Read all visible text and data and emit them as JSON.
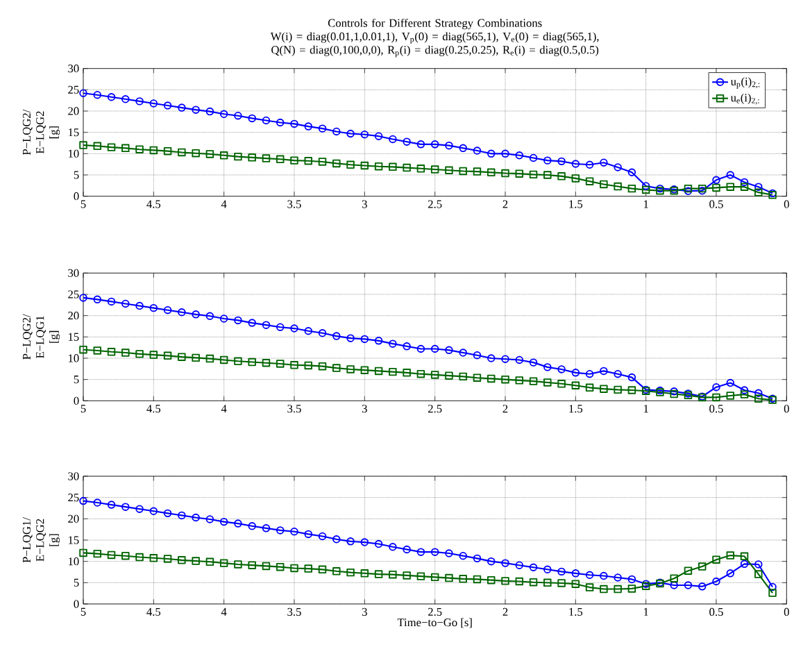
{
  "chart_data": [
    {
      "type": "line",
      "title": "Controls for Different Strategy Combinations",
      "subtitle": "W(i) = diag(0.01,1,0.01,1), V$_{p}$(0) = diag(565,1), V$_{e}$(0) = diag(565,1), Q(N) = diag(0,100,0,0), R$_{p}$(i) = diag(0.25,0.25), R$_{e}$(i) = diag(0.5,0.5)",
      "ylabel": "P−LQG2/ E−LQG2 [g]",
      "x": [
        5,
        4.9,
        4.8,
        4.7,
        4.6,
        4.5,
        4.4,
        4.3,
        4.2,
        4.1,
        4,
        3.9,
        3.8,
        3.7,
        3.6,
        3.5,
        3.4,
        3.3,
        3.2,
        3.1,
        3,
        2.9,
        2.8,
        2.7,
        2.6,
        2.5,
        2.4,
        2.3,
        2.2,
        2.1,
        2,
        1.9,
        1.8,
        1.7,
        1.6,
        1.5,
        1.4,
        1.3,
        1.2,
        1.1,
        1,
        0.9,
        0.8,
        0.7,
        0.6,
        0.5,
        0.4,
        0.3,
        0.2,
        0.1
      ],
      "xlim": [
        5,
        0
      ],
      "xticks": [
        5,
        4.5,
        4,
        3.5,
        3,
        2.5,
        2,
        1.5,
        1,
        0.5,
        0
      ],
      "ylim": [
        0,
        30
      ],
      "yticks": [
        0,
        5,
        10,
        15,
        20,
        25,
        30
      ],
      "grid": true,
      "legend": "top right",
      "series": [
        {
          "name": "u$_{p}$(i)$_{2,:}$",
          "color": "#0000ff",
          "marker": "circle",
          "values": [
            24.2,
            23.8,
            23.3,
            22.8,
            22.3,
            21.8,
            21.3,
            20.8,
            20.3,
            19.9,
            19.3,
            18.9,
            18.3,
            17.8,
            17.3,
            17.0,
            16.4,
            15.9,
            15.2,
            14.7,
            14.5,
            14.1,
            13.4,
            12.8,
            12.2,
            12.2,
            11.9,
            11.3,
            10.7,
            10.0,
            10.0,
            9.6,
            9.0,
            8.4,
            8.2,
            7.6,
            7.4,
            7.9,
            6.8,
            5.6,
            2.4,
            1.8,
            1.6,
            1.2,
            1.3,
            3.8,
            5.0,
            3.3,
            2.2,
            0.7
          ]
        },
        {
          "name": "u$_{e}$(i)$_{2,:}$",
          "color": "#006400",
          "marker": "square",
          "values": [
            12.0,
            11.8,
            11.5,
            11.3,
            11.0,
            10.8,
            10.6,
            10.3,
            10.1,
            9.9,
            9.6,
            9.3,
            9.1,
            8.9,
            8.7,
            8.4,
            8.3,
            8.1,
            7.7,
            7.4,
            7.2,
            7.0,
            6.9,
            6.7,
            6.5,
            6.3,
            6.1,
            5.9,
            5.8,
            5.6,
            5.4,
            5.3,
            5.1,
            5.0,
            4.7,
            4.2,
            3.5,
            2.8,
            2.3,
            1.8,
            1.5,
            1.3,
            1.3,
            1.8,
            1.8,
            2.0,
            2.2,
            2.2,
            0.9,
            0.3
          ]
        }
      ]
    },
    {
      "type": "line",
      "ylabel": "P−LQG2/ E−LQG1 [g]",
      "x": [
        5,
        4.9,
        4.8,
        4.7,
        4.6,
        4.5,
        4.4,
        4.3,
        4.2,
        4.1,
        4,
        3.9,
        3.8,
        3.7,
        3.6,
        3.5,
        3.4,
        3.3,
        3.2,
        3.1,
        3,
        2.9,
        2.8,
        2.7,
        2.6,
        2.5,
        2.4,
        2.3,
        2.2,
        2.1,
        2,
        1.9,
        1.8,
        1.7,
        1.6,
        1.5,
        1.4,
        1.3,
        1.2,
        1.1,
        1,
        0.9,
        0.8,
        0.7,
        0.6,
        0.5,
        0.4,
        0.3,
        0.2,
        0.1
      ],
      "xlim": [
        5,
        0
      ],
      "xticks": [
        5,
        4.5,
        4,
        3.5,
        3,
        2.5,
        2,
        1.5,
        1,
        0.5,
        0
      ],
      "ylim": [
        0,
        30
      ],
      "yticks": [
        0,
        5,
        10,
        15,
        20,
        25,
        30
      ],
      "grid": true,
      "series": [
        {
          "color": "#0000ff",
          "marker": "circle",
          "values": [
            24.2,
            23.8,
            23.3,
            22.8,
            22.3,
            21.8,
            21.3,
            20.8,
            20.3,
            19.9,
            19.3,
            18.9,
            18.3,
            17.8,
            17.3,
            17.0,
            16.4,
            15.9,
            15.2,
            14.7,
            14.5,
            14.1,
            13.4,
            12.8,
            12.2,
            12.2,
            11.9,
            11.3,
            10.7,
            10.0,
            9.8,
            9.6,
            9.0,
            7.9,
            7.4,
            6.6,
            6.3,
            7.0,
            6.3,
            5.5,
            2.6,
            2.4,
            2.2,
            1.7,
            1.0,
            3.2,
            4.2,
            2.5,
            1.8,
            0.5
          ]
        },
        {
          "color": "#006400",
          "marker": "square",
          "values": [
            12.0,
            11.8,
            11.5,
            11.3,
            11.0,
            10.8,
            10.6,
            10.3,
            10.1,
            9.9,
            9.6,
            9.3,
            9.1,
            8.9,
            8.7,
            8.4,
            8.3,
            8.1,
            7.7,
            7.4,
            7.2,
            7.0,
            6.8,
            6.6,
            6.3,
            6.1,
            5.9,
            5.7,
            5.4,
            5.2,
            5.0,
            4.8,
            4.6,
            4.3,
            4.0,
            3.6,
            3.1,
            2.8,
            2.6,
            2.5,
            2.3,
            2.0,
            1.6,
            1.3,
            0.8,
            0.8,
            1.2,
            1.5,
            0.5,
            0.2
          ]
        }
      ]
    },
    {
      "type": "line",
      "ylabel": "P−LQG1/ E−LQG2 [g]",
      "xlabel": "Time−to−Go [s]",
      "x": [
        5,
        4.9,
        4.8,
        4.7,
        4.6,
        4.5,
        4.4,
        4.3,
        4.2,
        4.1,
        4,
        3.9,
        3.8,
        3.7,
        3.6,
        3.5,
        3.4,
        3.3,
        3.2,
        3.1,
        3,
        2.9,
        2.8,
        2.7,
        2.6,
        2.5,
        2.4,
        2.3,
        2.2,
        2.1,
        2,
        1.9,
        1.8,
        1.7,
        1.6,
        1.5,
        1.4,
        1.3,
        1.2,
        1.1,
        1,
        0.9,
        0.8,
        0.7,
        0.6,
        0.5,
        0.4,
        0.3,
        0.2,
        0.1
      ],
      "xlim": [
        5,
        0
      ],
      "xticks": [
        5,
        4.5,
        4,
        3.5,
        3,
        2.5,
        2,
        1.5,
        1,
        0.5,
        0
      ],
      "ylim": [
        0,
        30
      ],
      "yticks": [
        0,
        5,
        10,
        15,
        20,
        25,
        30
      ],
      "grid": true,
      "series": [
        {
          "color": "#0000ff",
          "marker": "circle",
          "values": [
            24.2,
            23.8,
            23.3,
            22.8,
            22.3,
            21.8,
            21.3,
            20.8,
            20.3,
            19.9,
            19.3,
            18.9,
            18.3,
            17.8,
            17.3,
            17.0,
            16.4,
            15.9,
            15.2,
            14.7,
            14.5,
            14.1,
            13.4,
            12.8,
            12.2,
            12.2,
            11.9,
            11.3,
            10.7,
            10.0,
            9.6,
            9.1,
            8.6,
            8.1,
            7.6,
            7.2,
            6.8,
            6.6,
            6.2,
            5.8,
            4.7,
            5.0,
            4.4,
            4.4,
            4.1,
            5.3,
            7.2,
            9.4,
            9.3,
            4.0
          ]
        },
        {
          "color": "#006400",
          "marker": "square",
          "values": [
            12.0,
            11.8,
            11.5,
            11.3,
            11.0,
            10.8,
            10.6,
            10.3,
            10.1,
            9.9,
            9.6,
            9.3,
            9.1,
            8.9,
            8.7,
            8.4,
            8.3,
            8.1,
            7.7,
            7.4,
            7.2,
            7.0,
            6.9,
            6.7,
            6.5,
            6.3,
            6.1,
            5.9,
            5.8,
            5.6,
            5.4,
            5.3,
            5.1,
            5.0,
            4.9,
            4.7,
            3.9,
            3.5,
            3.5,
            3.6,
            4.2,
            4.8,
            6.0,
            7.8,
            8.8,
            10.4,
            11.4,
            11.2,
            7.0,
            2.6
          ]
        }
      ]
    }
  ]
}
